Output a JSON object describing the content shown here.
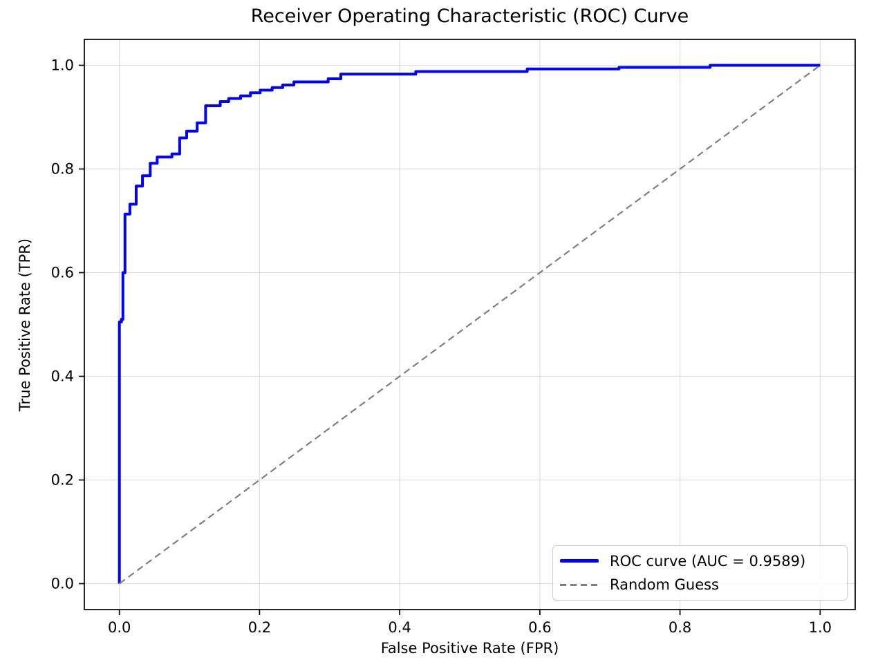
{
  "chart_data": {
    "type": "line",
    "title": "Receiver Operating Characteristic (ROC) Curve",
    "xlabel": "False Positive Rate (FPR)",
    "ylabel": "True Positive Rate (TPR)",
    "xlim": [
      -0.05,
      1.05
    ],
    "ylim": [
      -0.05,
      1.05
    ],
    "grid": true,
    "legend_position": "lower right",
    "xticks": {
      "values": [
        0.0,
        0.2,
        0.4,
        0.6,
        0.8,
        1.0
      ],
      "labels": [
        "0.0",
        "0.2",
        "0.4",
        "0.6",
        "0.8",
        "1.0"
      ]
    },
    "yticks": {
      "values": [
        0.0,
        0.2,
        0.4,
        0.6,
        0.8,
        1.0
      ],
      "labels": [
        "0.0",
        "0.2",
        "0.4",
        "0.6",
        "0.8",
        "1.0"
      ]
    },
    "colors": {
      "roc_curve": "#0000ff",
      "random_guess": "#7f7f7f",
      "grid": "rgba(176,176,176,0.4)",
      "spine": "#000000",
      "background": "#ffffff",
      "legend_border": "#cccccc"
    },
    "series": [
      {
        "name": "ROC curve (AUC = 0.9589)",
        "auc": 0.9589,
        "color": "#0000ff",
        "style": "solid",
        "line_width": 4,
        "points": [
          [
            0.0,
            0.0
          ],
          [
            0.0,
            0.505
          ],
          [
            0.003,
            0.505
          ],
          [
            0.003,
            0.51
          ],
          [
            0.005,
            0.51
          ],
          [
            0.005,
            0.6
          ],
          [
            0.008,
            0.6
          ],
          [
            0.008,
            0.713
          ],
          [
            0.015,
            0.713
          ],
          [
            0.015,
            0.732
          ],
          [
            0.024,
            0.732
          ],
          [
            0.024,
            0.767
          ],
          [
            0.033,
            0.767
          ],
          [
            0.033,
            0.787
          ],
          [
            0.044,
            0.787
          ],
          [
            0.044,
            0.811
          ],
          [
            0.054,
            0.811
          ],
          [
            0.054,
            0.823
          ],
          [
            0.075,
            0.823
          ],
          [
            0.075,
            0.829
          ],
          [
            0.086,
            0.829
          ],
          [
            0.086,
            0.86
          ],
          [
            0.096,
            0.86
          ],
          [
            0.096,
            0.873
          ],
          [
            0.111,
            0.873
          ],
          [
            0.111,
            0.889
          ],
          [
            0.123,
            0.889
          ],
          [
            0.123,
            0.922
          ],
          [
            0.144,
            0.922
          ],
          [
            0.144,
            0.93
          ],
          [
            0.156,
            0.93
          ],
          [
            0.156,
            0.936
          ],
          [
            0.173,
            0.936
          ],
          [
            0.173,
            0.941
          ],
          [
            0.187,
            0.941
          ],
          [
            0.187,
            0.947
          ],
          [
            0.201,
            0.947
          ],
          [
            0.201,
            0.952
          ],
          [
            0.218,
            0.952
          ],
          [
            0.218,
            0.957
          ],
          [
            0.233,
            0.957
          ],
          [
            0.233,
            0.962
          ],
          [
            0.249,
            0.962
          ],
          [
            0.249,
            0.968
          ],
          [
            0.298,
            0.968
          ],
          [
            0.298,
            0.974
          ],
          [
            0.316,
            0.974
          ],
          [
            0.316,
            0.983
          ],
          [
            0.423,
            0.983
          ],
          [
            0.423,
            0.988
          ],
          [
            0.582,
            0.988
          ],
          [
            0.582,
            0.993
          ],
          [
            0.713,
            0.993
          ],
          [
            0.713,
            0.996
          ],
          [
            0.843,
            0.996
          ],
          [
            0.843,
            1.0
          ],
          [
            1.0,
            1.0
          ]
        ]
      },
      {
        "name": "Random Guess",
        "color": "#7f7f7f",
        "style": "dashed",
        "line_width": 2.2,
        "points": [
          [
            0,
            0
          ],
          [
            1,
            1
          ]
        ]
      }
    ]
  },
  "legend": {
    "items": [
      {
        "label": "ROC curve (AUC = 0.9589)",
        "color": "#0000ff",
        "style": "solid"
      },
      {
        "label": "Random Guess",
        "color": "#7f7f7f",
        "style": "dashed"
      }
    ]
  }
}
